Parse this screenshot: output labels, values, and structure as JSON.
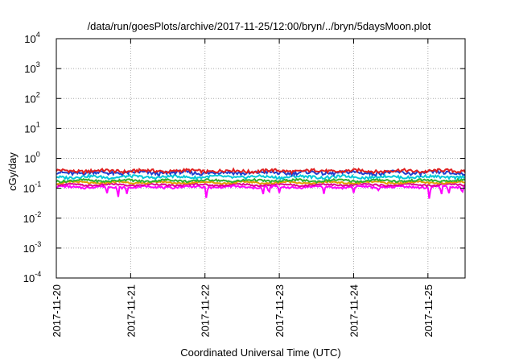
{
  "chart_data": {
    "type": "line",
    "title": "/data/run/goesPlots/archive/2017-11-25/12:00/bryn/../bryn/5daysMoon.plot",
    "xlabel": "Coordinated Universal Time (UTC)",
    "ylabel": "cGy/day",
    "y_scale": "log",
    "ylim_exp": [
      -4,
      4
    ],
    "y_ticks": [
      {
        "base": "10",
        "exp": "-4"
      },
      {
        "base": "10",
        "exp": "-3"
      },
      {
        "base": "10",
        "exp": "-2"
      },
      {
        "base": "10",
        "exp": "-1"
      },
      {
        "base": "10",
        "exp": "0"
      },
      {
        "base": "10",
        "exp": "1"
      },
      {
        "base": "10",
        "exp": "2"
      },
      {
        "base": "10",
        "exp": "3"
      },
      {
        "base": "10",
        "exp": "4"
      }
    ],
    "x_ticks": [
      "2017-11-20",
      "2017-11-21",
      "2017-11-22",
      "2017-11-23",
      "2017-11-24",
      "2017-11-25"
    ],
    "x_range_days": [
      0,
      5.5
    ],
    "grid": true,
    "series": [
      {
        "color": "#e02020",
        "level": 0.38,
        "noise": 0.12,
        "dips": []
      },
      {
        "color": "#2040d0",
        "level": 0.33,
        "noise": 0.14,
        "dips": []
      },
      {
        "color": "#00c8d8",
        "level": 0.24,
        "noise": 0.1,
        "dips": []
      },
      {
        "color": "#30b030",
        "level": 0.18,
        "noise": 0.08,
        "dips": []
      },
      {
        "color": "#e0a000",
        "level": 0.155,
        "noise": 0.06,
        "dips": []
      },
      {
        "color": "#e00090",
        "level": 0.13,
        "noise": 0.06,
        "dips": []
      },
      {
        "color": "#ff00ff",
        "level": 0.11,
        "noise": 0.08,
        "dips": [
          {
            "day": 0.68,
            "value": 0.06
          },
          {
            "day": 0.83,
            "value": 0.04
          },
          {
            "day": 0.95,
            "value": 0.065
          },
          {
            "day": 2.02,
            "value": 0.035
          },
          {
            "day": 2.78,
            "value": 0.055
          },
          {
            "day": 2.86,
            "value": 0.06
          },
          {
            "day": 3.0,
            "value": 0.07
          },
          {
            "day": 3.6,
            "value": 0.065
          },
          {
            "day": 4.0,
            "value": 0.07
          },
          {
            "day": 4.33,
            "value": 0.08
          },
          {
            "day": 5.02,
            "value": 0.032
          },
          {
            "day": 5.18,
            "value": 0.055
          },
          {
            "day": 5.28,
            "value": 0.06
          },
          {
            "day": 5.46,
            "value": 0.06
          }
        ]
      }
    ]
  }
}
